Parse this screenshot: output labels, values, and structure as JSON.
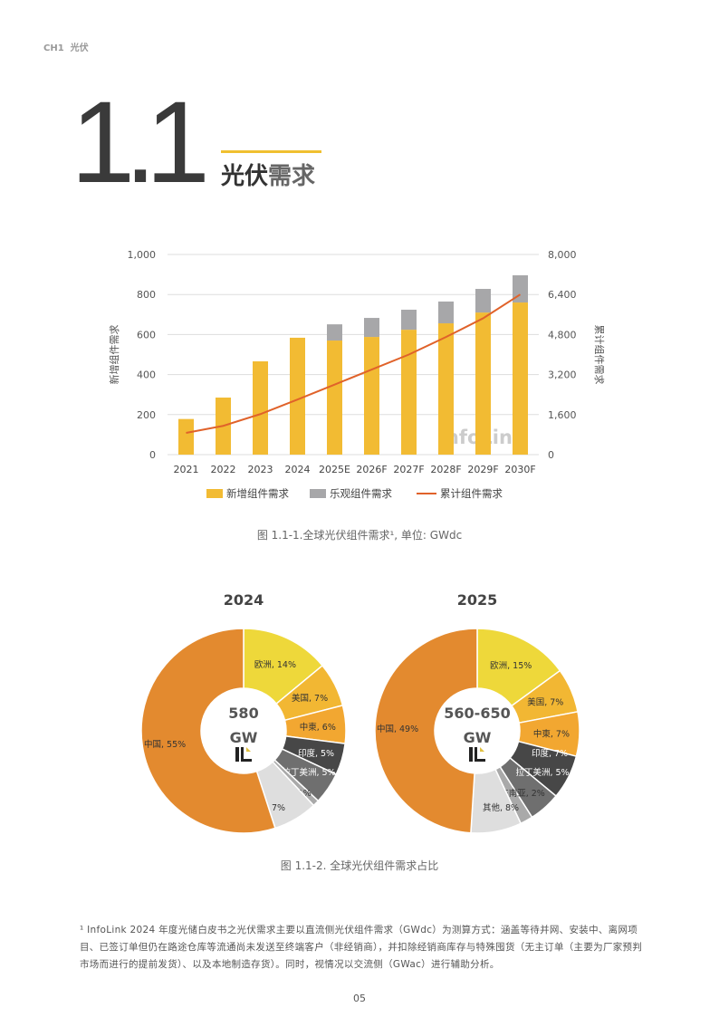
{
  "header": {
    "chapter": "CH1",
    "chapter_title": "光伏"
  },
  "section": {
    "number": "1.1",
    "title_a": "光伏",
    "title_b": "需求"
  },
  "colors": {
    "accent": "#f0c030",
    "new": "#f2bb33",
    "optimistic": "#a7a7a9",
    "cumulative": "#e0622a"
  },
  "figure1_caption": "图 1.1-1.全球光伏组件需求¹, 单位: GWdc",
  "figure2_caption": "图 1.1-2. 全球光伏组件需求占比",
  "watermark": "InfoLink",
  "footnote": "¹ InfoLink 2024 年度光储白皮书之光伏需求主要以直流侧光伏组件需求（GWdc）为测算方式：涵盖等待并网、安装中、离网项目、已签订单但仍在路途仓库等流通尚未发送至终端客户（非经销商），并扣除经销商库存与特殊囤货（无主订单（主要为厂家预判市场而进行的提前发货）、以及本地制造存货）。同时，视情况以交流侧（GWac）进行辅助分析。",
  "page_number": "05",
  "chart_data": [
    {
      "type": "bar",
      "stacked": true,
      "categories": [
        "2021",
        "2022",
        "2023",
        "2024",
        "2025E",
        "2026F",
        "2027F",
        "2028F",
        "2029F",
        "2030F"
      ],
      "ylabel": "新增组件需求",
      "y2label": "累计组件需求",
      "ylim": [
        0,
        1000
      ],
      "y2lim": [
        0,
        8000
      ],
      "yticks": [
        "0",
        "200",
        "400",
        "600",
        "800",
        "1,000"
      ],
      "y2ticks": [
        "0",
        "1,600",
        "3,200",
        "4,800",
        "6,400",
        "8,000"
      ],
      "grid": true,
      "legend": "bottom",
      "series": [
        {
          "name": "新增组件需求",
          "type": "bar",
          "values": [
            178,
            285,
            466,
            584,
            570,
            588,
            624,
            656,
            710,
            760
          ]
        },
        {
          "name": "乐观组件需求",
          "type": "bar",
          "values": [
            0,
            0,
            0,
            0,
            81,
            95,
            100,
            109,
            118,
            136
          ]
        },
        {
          "name": "累计组件需求",
          "type": "line",
          "axis": "right",
          "values": [
            870,
            1150,
            1620,
            2200,
            2800,
            3400,
            4000,
            4700,
            5450,
            6400
          ]
        }
      ]
    },
    {
      "type": "pie",
      "donut": true,
      "title": "2024",
      "center_value": "580",
      "center_unit": "GW",
      "labels": [
        "欧洲",
        "美国",
        "中東",
        "印度",
        "拉丁美洲",
        "东南亚",
        "其他",
        "中国"
      ],
      "values": [
        14,
        7,
        6,
        5,
        5,
        1,
        7,
        55
      ]
    },
    {
      "type": "pie",
      "donut": true,
      "title": "2025",
      "center_value": "560-650",
      "center_unit": "GW",
      "labels": [
        "欧洲",
        "美国",
        "中東",
        "印度",
        "拉丁美洲",
        "东南亚",
        "其他",
        "中国"
      ],
      "values": [
        15,
        7,
        7,
        7,
        5,
        2,
        8,
        49
      ]
    }
  ],
  "pie_colors": [
    "#eed83a",
    "#f2b733",
    "#f2a731",
    "#474747",
    "#6f6f6f",
    "#a9a9a9",
    "#dedede",
    "#e38a2f"
  ],
  "pie_label_colors": [
    "#333",
    "#333",
    "#333",
    "#fff",
    "#fff",
    "#333",
    "#333",
    "#333"
  ]
}
